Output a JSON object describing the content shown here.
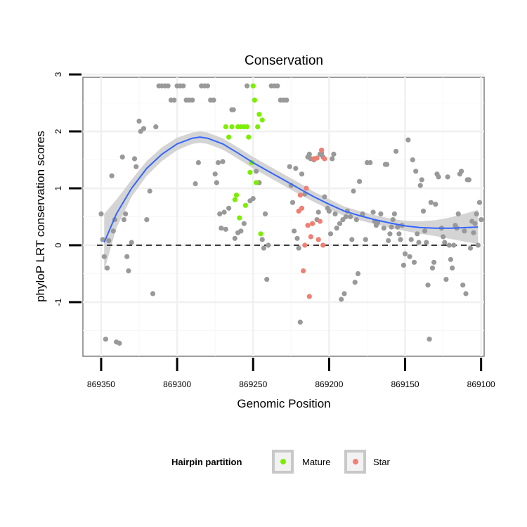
{
  "chart_data": {
    "type": "scatter",
    "title": "Conservation",
    "xlabel": "Genomic Position",
    "ylabel": "phyloP LRT conservation scores",
    "x_reversed": true,
    "xlim": [
      869362,
      869098
    ],
    "ylim": [
      -1.95,
      2.95
    ],
    "x_ticks": [
      869350,
      869300,
      869250,
      869200,
      869150,
      869100
    ],
    "x_tick_labels": [
      "869350",
      "869300",
      "869250",
      "869200",
      "869150",
      "869100"
    ],
    "y_ticks": [
      -1,
      0,
      1,
      2,
      3
    ],
    "y_tick_labels": [
      "-1",
      "0",
      "1",
      "2",
      "3"
    ],
    "reference_line": {
      "y": 0,
      "style": "dashed"
    },
    "legend": {
      "title": "Hairpin partition",
      "position": "bottom",
      "entries": [
        {
          "label": "Mature",
          "color": "#7cee00"
        },
        {
          "label": "Star",
          "color": "#f07f73"
        }
      ]
    },
    "colors": {
      "Other": "#999999",
      "Mature": "#7cee00",
      "Star": "#f07f73",
      "smooth_line": "#3366ff",
      "confidence_band": "#cccccc"
    },
    "smooth": {
      "x": [
        869348,
        869340,
        869330,
        869320,
        869310,
        869300,
        869290,
        869285,
        869280,
        869270,
        869260,
        869250,
        869240,
        869230,
        869220,
        869210,
        869200,
        869190,
        869180,
        869170,
        869160,
        869150,
        869140,
        869130,
        869120,
        869110,
        869102
      ],
      "y": [
        0.05,
        0.55,
        1.0,
        1.35,
        1.6,
        1.78,
        1.88,
        1.9,
        1.88,
        1.78,
        1.62,
        1.45,
        1.3,
        1.15,
        1.0,
        0.85,
        0.72,
        0.6,
        0.52,
        0.45,
        0.39,
        0.34,
        0.31,
        0.3,
        0.3,
        0.31,
        0.32
      ],
      "ymin": [
        -0.45,
        0.3,
        0.85,
        1.22,
        1.48,
        1.67,
        1.78,
        1.8,
        1.78,
        1.68,
        1.52,
        1.35,
        1.2,
        1.05,
        0.9,
        0.76,
        0.63,
        0.52,
        0.44,
        0.37,
        0.31,
        0.25,
        0.2,
        0.16,
        0.11,
        0.06,
        0.02
      ],
      "ymax": [
        0.55,
        0.8,
        1.15,
        1.48,
        1.72,
        1.89,
        1.98,
        2.0,
        1.98,
        1.88,
        1.72,
        1.55,
        1.4,
        1.25,
        1.1,
        0.94,
        0.81,
        0.68,
        0.6,
        0.53,
        0.47,
        0.43,
        0.42,
        0.44,
        0.49,
        0.56,
        0.62
      ]
    },
    "series": [
      {
        "name": "Other",
        "points": [
          [
            869350,
            0.55
          ],
          [
            869349,
            0.1
          ],
          [
            869348,
            -0.2
          ],
          [
            869347,
            -1.65
          ],
          [
            869346,
            -0.4
          ],
          [
            869345,
            0.08
          ],
          [
            869343,
            1.22
          ],
          [
            869342,
            0.25
          ],
          [
            869341,
            0.45
          ],
          [
            869340,
            -1.7
          ],
          [
            869338,
            -1.72
          ],
          [
            869336,
            1.55
          ],
          [
            869335,
            0.45
          ],
          [
            869334,
            0.55
          ],
          [
            869333,
            -0.2
          ],
          [
            869332,
            -0.45
          ],
          [
            869330,
            0.05
          ],
          [
            869328,
            1.52
          ],
          [
            869327,
            1.38
          ],
          [
            869325,
            2.18
          ],
          [
            869324,
            2.0
          ],
          [
            869322,
            2.05
          ],
          [
            869320,
            0.45
          ],
          [
            869318,
            0.95
          ],
          [
            869316,
            -0.85
          ],
          [
            869314,
            2.08
          ],
          [
            869312,
            2.8
          ],
          [
            869310,
            2.8
          ],
          [
            869308,
            2.8
          ],
          [
            869306,
            2.8
          ],
          [
            869304,
            2.55
          ],
          [
            869302,
            2.55
          ],
          [
            869300,
            2.8
          ],
          [
            869298,
            2.8
          ],
          [
            869296,
            2.8
          ],
          [
            869294,
            2.55
          ],
          [
            869292,
            2.55
          ],
          [
            869290,
            2.55
          ],
          [
            869288,
            1.08
          ],
          [
            869286,
            1.45
          ],
          [
            869284,
            2.8
          ],
          [
            869282,
            2.8
          ],
          [
            869280,
            2.8
          ],
          [
            869278,
            2.55
          ],
          [
            869276,
            2.55
          ],
          [
            869275,
            1.25
          ],
          [
            869274,
            1.1
          ],
          [
            869273,
            1.45
          ],
          [
            869272,
            0.55
          ],
          [
            869271,
            0.3
          ],
          [
            869270,
            1.47
          ],
          [
            869269,
            0.58
          ],
          [
            869268,
            0.28
          ],
          [
            869266,
            0.65
          ],
          [
            869264,
            2.38
          ],
          [
            869263,
            2.38
          ],
          [
            869262,
            0.12
          ],
          [
            869260,
            0.22
          ],
          [
            869258,
            0.25
          ],
          [
            869256,
            0.38
          ],
          [
            869254,
            2.8
          ],
          [
            869252,
            0.78
          ],
          [
            869250,
            0.82
          ],
          [
            869248,
            1.3
          ],
          [
            869246,
            1.1
          ],
          [
            869244,
            0.1
          ],
          [
            869243,
            -0.05
          ],
          [
            869242,
            0.55
          ],
          [
            869241,
            -0.6
          ],
          [
            869240,
            0.0
          ],
          [
            869238,
            2.8
          ],
          [
            869236,
            2.8
          ],
          [
            869234,
            2.8
          ],
          [
            869232,
            2.55
          ],
          [
            869230,
            2.55
          ],
          [
            869228,
            2.55
          ],
          [
            869226,
            1.38
          ],
          [
            869225,
            1.05
          ],
          [
            869224,
            0.75
          ],
          [
            869223,
            0.25
          ],
          [
            869222,
            1.35
          ],
          [
            869221,
            0.12
          ],
          [
            869220,
            -0.05
          ],
          [
            869219,
            -1.35
          ],
          [
            869218,
            1.25
          ],
          [
            869216,
            0.9
          ],
          [
            869214,
            1.55
          ],
          [
            869213,
            1.6
          ],
          [
            869212,
            1.52
          ],
          [
            869210,
            1.5
          ],
          [
            869208,
            0.45
          ],
          [
            869207,
            0.58
          ],
          [
            869206,
            1.6
          ],
          [
            869205,
            1.62
          ],
          [
            869204,
            1.55
          ],
          [
            869203,
            0.85
          ],
          [
            869201,
            0.65
          ],
          [
            869200,
            0.6
          ],
          [
            869199,
            0.2
          ],
          [
            869198,
            1.52
          ],
          [
            869197,
            1.6
          ],
          [
            869196,
            0.55
          ],
          [
            869195,
            0.3
          ],
          [
            869193,
            0.38
          ],
          [
            869192,
            -0.95
          ],
          [
            869191,
            0.45
          ],
          [
            869190,
            -0.85
          ],
          [
            869189,
            0.5
          ],
          [
            869188,
            0.6
          ],
          [
            869186,
            0.5
          ],
          [
            869185,
            0.1
          ],
          [
            869184,
            0.95
          ],
          [
            869183,
            -0.65
          ],
          [
            869182,
            0.45
          ],
          [
            869181,
            -0.5
          ],
          [
            869180,
            1.12
          ],
          [
            869178,
            0.55
          ],
          [
            869176,
            0.1
          ],
          [
            869175,
            1.45
          ],
          [
            869173,
            1.45
          ],
          [
            869171,
            0.58
          ],
          [
            869170,
            0.42
          ],
          [
            869169,
            0.35
          ],
          [
            869168,
            0.4
          ],
          [
            869166,
            0.55
          ],
          [
            869164,
            0.3
          ],
          [
            869163,
            1.42
          ],
          [
            869162,
            1.42
          ],
          [
            869161,
            0.08
          ],
          [
            869160,
            0.2
          ],
          [
            869159,
            0.32
          ],
          [
            869158,
            0.45
          ],
          [
            869157,
            0.55
          ],
          [
            869156,
            1.65
          ],
          [
            869155,
            0.32
          ],
          [
            869154,
            0.2
          ],
          [
            869153,
            0.1
          ],
          [
            869152,
            0.35
          ],
          [
            869151,
            -0.35
          ],
          [
            869150,
            -0.15
          ],
          [
            869148,
            1.85
          ],
          [
            869147,
            -0.2
          ],
          [
            869146,
            0.1
          ],
          [
            869145,
            1.5
          ],
          [
            869144,
            -0.3
          ],
          [
            869143,
            1.3
          ],
          [
            869142,
            0.2
          ],
          [
            869141,
            0.05
          ],
          [
            869140,
            1.05
          ],
          [
            869139,
            1.15
          ],
          [
            869138,
            0.6
          ],
          [
            869137,
            0.25
          ],
          [
            869136,
            0.05
          ],
          [
            869135,
            -0.7
          ],
          [
            869134,
            -1.65
          ],
          [
            869133,
            0.75
          ],
          [
            869132,
            -0.4
          ],
          [
            869131,
            -0.3
          ],
          [
            869130,
            0.72
          ],
          [
            869129,
            1.25
          ],
          [
            869128,
            1.2
          ],
          [
            869126,
            0.3
          ],
          [
            869125,
            0.15
          ],
          [
            869124,
            0.05
          ],
          [
            869123,
            -0.6
          ],
          [
            869122,
            1.2
          ],
          [
            869121,
            0.0
          ],
          [
            869120,
            -0.25
          ],
          [
            869119,
            -0.4
          ],
          [
            869118,
            0.0
          ],
          [
            869117,
            0.35
          ],
          [
            869116,
            0.3
          ],
          [
            869115,
            0.55
          ],
          [
            869114,
            1.25
          ],
          [
            869113,
            1.3
          ],
          [
            869112,
            -0.7
          ],
          [
            869111,
            0.25
          ],
          [
            869110,
            -0.85
          ],
          [
            869109,
            1.15
          ],
          [
            869108,
            1.15
          ],
          [
            869107,
            -0.05
          ],
          [
            869106,
            0.42
          ],
          [
            869105,
            0.22
          ],
          [
            869104,
            0.38
          ],
          [
            869103,
            0.55
          ],
          [
            869102,
            0.0
          ],
          [
            869101,
            0.75
          ],
          [
            869100,
            0.45
          ]
        ]
      },
      {
        "name": "Mature",
        "points": [
          [
            869268,
            2.08
          ],
          [
            869266,
            1.9
          ],
          [
            869264,
            2.08
          ],
          [
            869262,
            0.8
          ],
          [
            869261,
            0.88
          ],
          [
            869260,
            2.08
          ],
          [
            869259,
            0.48
          ],
          [
            869258,
            2.08
          ],
          [
            869256,
            2.08
          ],
          [
            869255,
            0.7
          ],
          [
            869254,
            2.08
          ],
          [
            869253,
            1.9
          ],
          [
            869252,
            1.28
          ],
          [
            869251,
            1.45
          ],
          [
            869250,
            2.8
          ],
          [
            869249,
            2.55
          ],
          [
            869248,
            1.1
          ],
          [
            869247,
            2.08
          ],
          [
            869246,
            2.3
          ],
          [
            869245,
            0.2
          ],
          [
            869244,
            2.2
          ]
        ]
      },
      {
        "name": "Star",
        "points": [
          [
            869220,
            0.6
          ],
          [
            869219,
            0.88
          ],
          [
            869218,
            0.65
          ],
          [
            869217,
            -0.45
          ],
          [
            869216,
            0.0
          ],
          [
            869215,
            1.0
          ],
          [
            869214,
            0.35
          ],
          [
            869213,
            -0.9
          ],
          [
            869212,
            0.15
          ],
          [
            869211,
            0.38
          ],
          [
            869210,
            1.52
          ],
          [
            869208,
            1.53
          ],
          [
            869207,
            0.1
          ],
          [
            869206,
            0.42
          ],
          [
            869205,
            1.67
          ],
          [
            869204,
            0.0
          ],
          [
            869203,
            1.52
          ]
        ]
      }
    ]
  }
}
